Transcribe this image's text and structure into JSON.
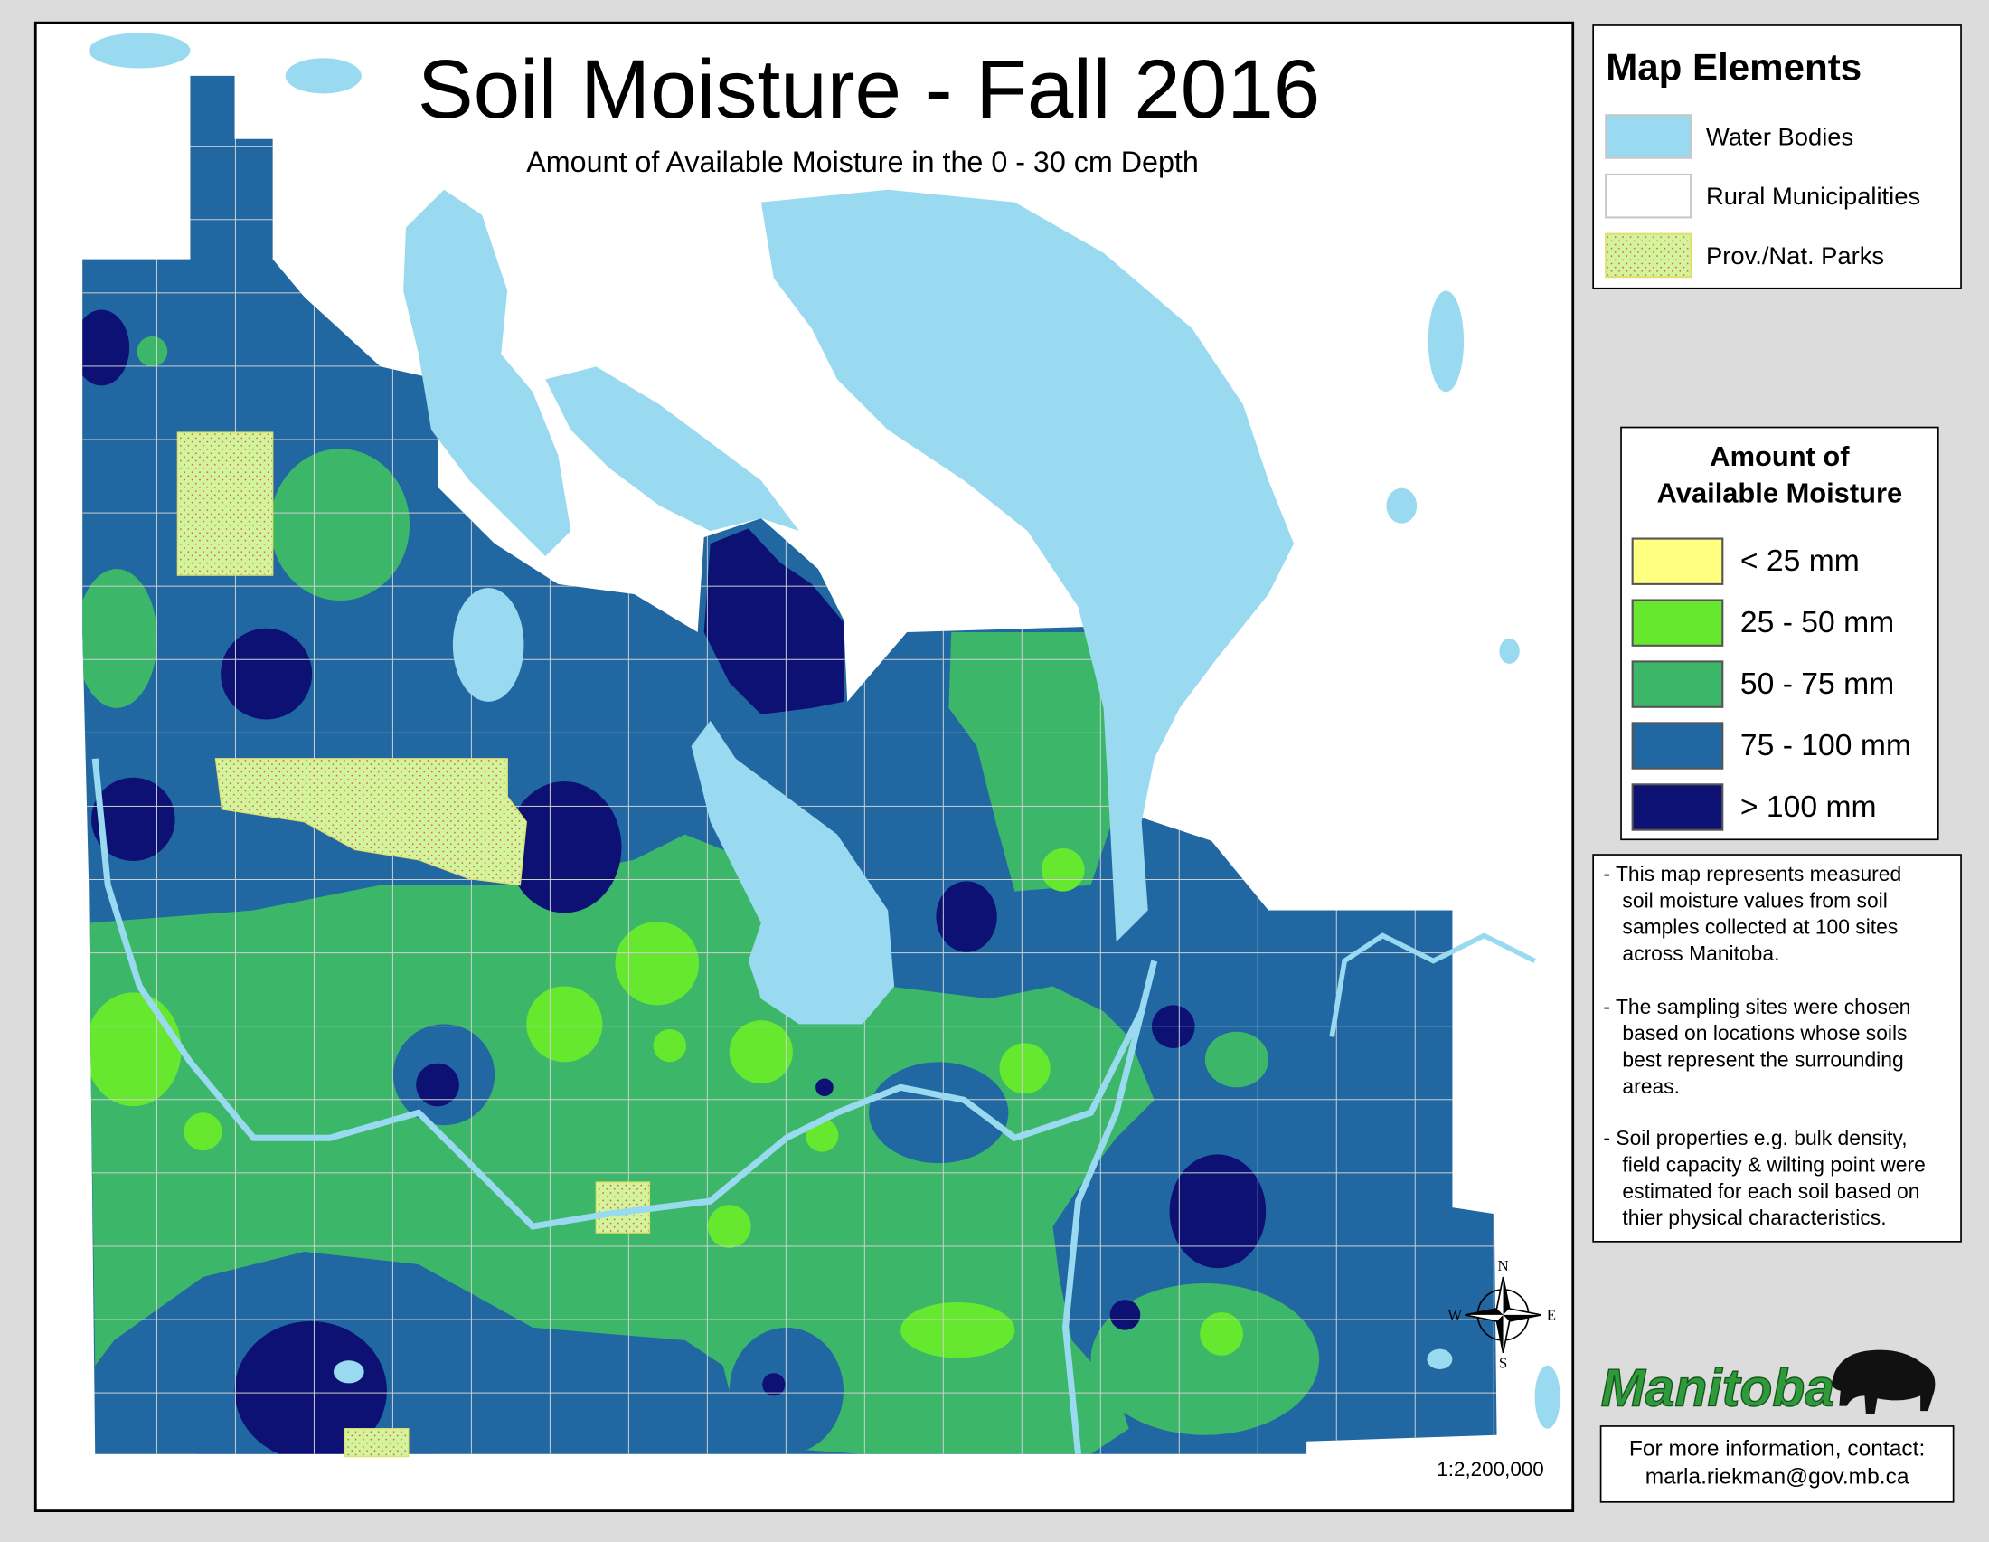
{
  "title": "Soil Moisture - Fall 2016",
  "subtitle": "Amount of Available Moisture in the 0 - 30 cm Depth",
  "map_elements": {
    "title": "Map Elements",
    "items": [
      {
        "label": "Water Bodies",
        "color": "#9adaf0"
      },
      {
        "label": "Rural Municipalities",
        "color": "#ffffff"
      },
      {
        "label": "Prov./Nat. Parks",
        "color": "#d2f59b"
      }
    ]
  },
  "moisture_legend": {
    "title": [
      "Amount of",
      "Available Moisture"
    ],
    "items": [
      {
        "label": "< 25 mm",
        "color": "#ffff80"
      },
      {
        "label": "25 - 50 mm",
        "color": "#66e82e"
      },
      {
        "label": "50 - 75 mm",
        "color": "#3cb76a"
      },
      {
        "label": "75 - 100 mm",
        "color": "#2168a3"
      },
      {
        "label": "> 100 mm",
        "color": "#0c1173"
      }
    ]
  },
  "notes": [
    [
      "- This map represents measured",
      "soil moisture values from soil",
      "samples collected at 100 sites",
      "across Manitoba."
    ],
    [
      "- The sampling sites were chosen",
      "based on locations whose soils",
      "best represent the surrounding",
      "areas."
    ],
    [
      "- Soil properties e.g. bulk density,",
      "field capacity & wilting point were",
      "estimated for each soil based on",
      "thier physical characteristics."
    ]
  ],
  "logo": "Manitoba",
  "contact": [
    "For more information, contact:",
    "marla.riekman@gov.mb.ca"
  ],
  "scale": "1:2,200,000",
  "compass": {
    "north": "N",
    "south": "S",
    "east": "E",
    "west": "W"
  }
}
